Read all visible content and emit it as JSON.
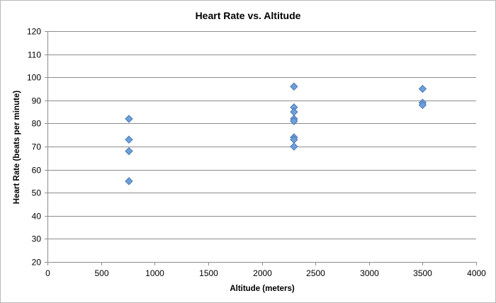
{
  "chart_data": {
    "type": "scatter",
    "title": "Heart Rate vs. Altitude",
    "xlabel": "Altitude (meters)",
    "ylabel": "Heart Rate (beats per minute)",
    "xlim": [
      0,
      4000
    ],
    "ylim": [
      20,
      120
    ],
    "xticks": [
      0,
      500,
      1000,
      1500,
      2000,
      2500,
      3000,
      3500,
      4000
    ],
    "yticks": [
      20,
      30,
      40,
      50,
      60,
      70,
      80,
      90,
      100,
      110,
      120
    ],
    "grid": "horizontal",
    "legend": "none",
    "marker": "diamond",
    "marker_color": "#6f9fd8",
    "marker_edge_color": "#4a7ab8",
    "series": [
      {
        "points": [
          {
            "x": 760,
            "y": 82
          },
          {
            "x": 760,
            "y": 73
          },
          {
            "x": 760,
            "y": 68
          },
          {
            "x": 760,
            "y": 55
          },
          {
            "x": 2300,
            "y": 96
          },
          {
            "x": 2300,
            "y": 87
          },
          {
            "x": 2300,
            "y": 85
          },
          {
            "x": 2300,
            "y": 82
          },
          {
            "x": 2300,
            "y": 81
          },
          {
            "x": 2300,
            "y": 74
          },
          {
            "x": 2300,
            "y": 73
          },
          {
            "x": 2300,
            "y": 70
          },
          {
            "x": 3500,
            "y": 95
          },
          {
            "x": 3500,
            "y": 89
          },
          {
            "x": 3500,
            "y": 88
          }
        ]
      }
    ]
  }
}
